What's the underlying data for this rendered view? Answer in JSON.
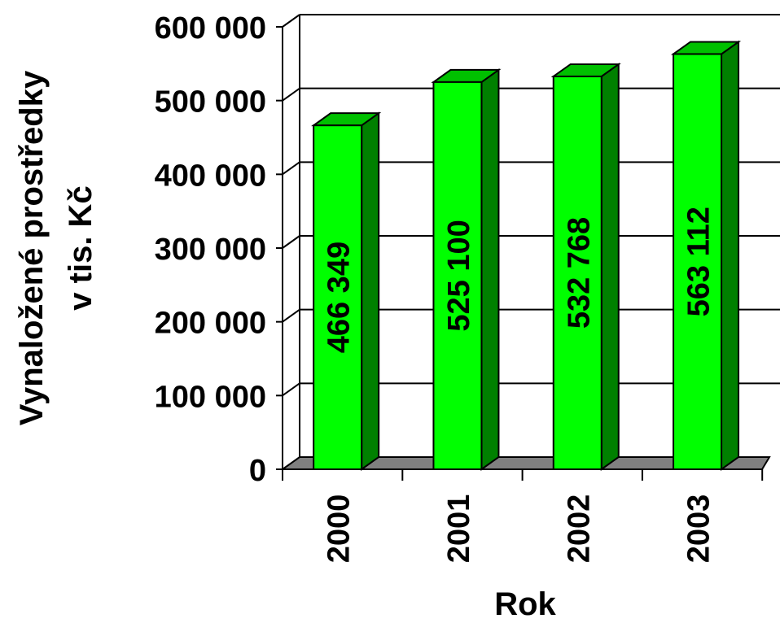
{
  "chart_data": {
    "type": "bar",
    "categories": [
      "2000",
      "2001",
      "2002",
      "2003"
    ],
    "values": [
      466349,
      525100,
      532768,
      563112
    ],
    "value_labels": [
      "466 349",
      "525 100",
      "532 768",
      "563 112"
    ],
    "xlabel": "Rok",
    "ylabel_line1": "Vynaložené prostředky",
    "ylabel_line2": "v tis. Kč",
    "ylim": [
      0,
      600000
    ],
    "yticks": [
      0,
      100000,
      200000,
      300000,
      400000,
      500000,
      600000
    ],
    "ytick_labels": [
      "0",
      "100 000",
      "200 000",
      "300 000",
      "400 000",
      "500 000",
      "600 000"
    ],
    "grid": true,
    "style": "3d",
    "colors": {
      "bar_front": "#00ff00",
      "bar_side": "#008000",
      "bar_top": "#00c000",
      "floor": "#808080"
    }
  }
}
